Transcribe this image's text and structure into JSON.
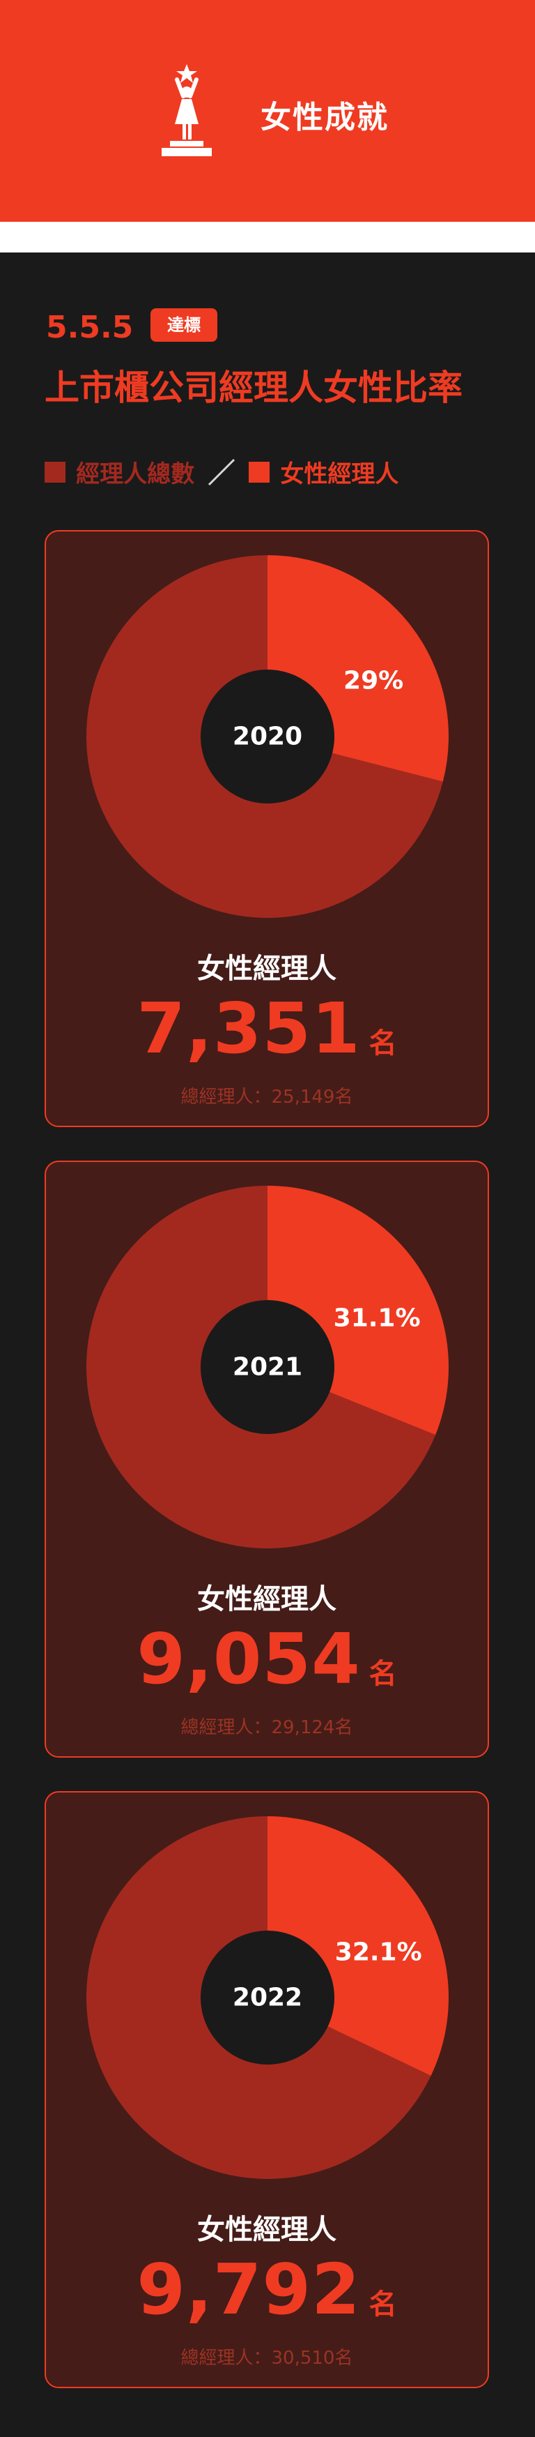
{
  "header": {
    "title": "女性成就",
    "icon": "woman-trophy-icon",
    "bg_color": "#ef3b22"
  },
  "section": {
    "number": "5.5.5",
    "badge": "達標",
    "title": "上市櫃公司經理人女性比率"
  },
  "legend": {
    "items": [
      {
        "label": "經理人總數",
        "color": "#a3291f"
      },
      {
        "label": "女性經理人",
        "color": "#ef3b22"
      }
    ],
    "separator": "／"
  },
  "cards": [
    {
      "year": "2020",
      "percent_label": "29%",
      "label": "女性經理人",
      "count": "7,351",
      "unit": "名",
      "total_text": "總經理人：25,149名"
    },
    {
      "year": "2021",
      "percent_label": "31.1%",
      "label": "女性經理人",
      "count": "9,054",
      "unit": "名",
      "total_text": "總經理人：29,124名"
    },
    {
      "year": "2022",
      "percent_label": "32.1%",
      "label": "女性經理人",
      "count": "9,792",
      "unit": "名",
      "total_text": "總經理人：30,510名"
    }
  ],
  "chart_data": [
    {
      "type": "pie",
      "title": "2020",
      "categories": [
        "女性經理人",
        "經理人總數"
      ],
      "values": [
        29,
        71
      ],
      "colors": [
        "#ef3b22",
        "#a3291f"
      ]
    },
    {
      "type": "pie",
      "title": "2021",
      "categories": [
        "女性經理人",
        "經理人總數"
      ],
      "values": [
        31.1,
        68.9
      ],
      "colors": [
        "#ef3b22",
        "#a3291f"
      ]
    },
    {
      "type": "pie",
      "title": "2022",
      "categories": [
        "女性經理人",
        "經理人總數"
      ],
      "values": [
        32.1,
        67.9
      ],
      "colors": [
        "#ef3b22",
        "#a3291f"
      ]
    }
  ],
  "colors": {
    "accent": "#ef3b22",
    "dark_red": "#a3291f",
    "card_bg": "#451c18",
    "page_bg": "#1a1a1a",
    "hole": "#1a1a1a",
    "total_text": "#9c3324"
  }
}
